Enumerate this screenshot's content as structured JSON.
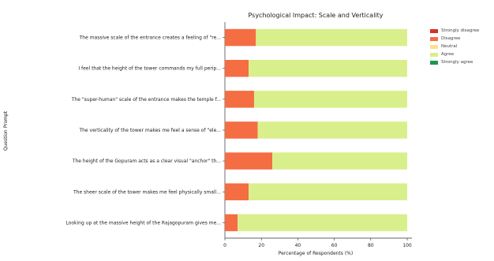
{
  "chart_data": {
    "type": "bar",
    "orientation": "horizontal",
    "stacked": true,
    "title": "Psychological Impact: Scale and Verticality",
    "xlabel": "Percentage of Respondents (%)",
    "ylabel": "Question Prompt",
    "xlim": [
      0,
      100
    ],
    "xticks": [
      0,
      20,
      40,
      60,
      80,
      100
    ],
    "grid": false,
    "legend_position": "top-right",
    "categories": [
      "The massive scale of the entrance creates a feeling of \"re...",
      "I feel that the height of the tower commands my full perip...",
      "The \"super-human\" scale of the entrance makes the temple f...",
      "The verticality of the tower makes me feel a sense of \"ele...",
      "The height of the Gopuram acts as a clear visual \"anchor\" th...",
      "The sheer scale of the tower makes me feel physically small...",
      "Looking up at the massive height of the Rajagopuram gives me..."
    ],
    "series": [
      {
        "name": "Strongly disagree",
        "color": "#d73027",
        "values": [
          0,
          0,
          0,
          0,
          0,
          0,
          0
        ]
      },
      {
        "name": "Disagree",
        "color": "#f46d43",
        "values": [
          17,
          13,
          16,
          18,
          26,
          13,
          7
        ]
      },
      {
        "name": "Neutral",
        "color": "#fee08b",
        "values": [
          0,
          0,
          0,
          0,
          0,
          0,
          0
        ]
      },
      {
        "name": "Agree",
        "color": "#d9ef8b",
        "values": [
          83,
          87,
          84,
          82,
          74,
          87,
          93
        ]
      },
      {
        "name": "Strongly agree",
        "color": "#1a9850",
        "values": [
          0,
          0,
          0,
          0,
          0,
          0,
          0
        ]
      }
    ]
  }
}
